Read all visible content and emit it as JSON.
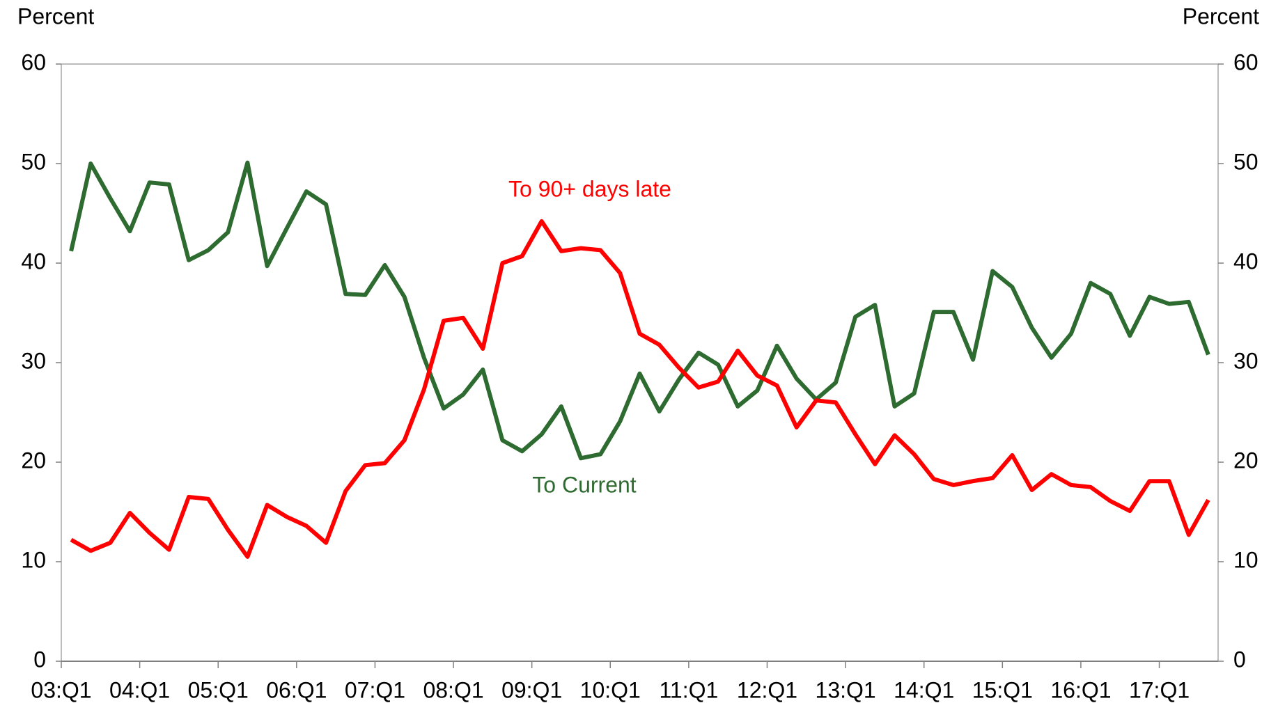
{
  "chart_data": {
    "type": "line",
    "y_label": "Percent",
    "y2_label": "Percent",
    "categories": [
      "03:Q1",
      null,
      null,
      null,
      "04:Q1",
      null,
      null,
      null,
      "05:Q1",
      null,
      null,
      null,
      "06:Q1",
      null,
      null,
      null,
      "07:Q1",
      null,
      null,
      null,
      "08:Q1",
      null,
      null,
      null,
      "09:Q1",
      null,
      null,
      null,
      "10:Q1",
      null,
      null,
      null,
      "11:Q1",
      null,
      null,
      null,
      "12:Q1",
      null,
      null,
      null,
      "13:Q1",
      null,
      null,
      null,
      "14:Q1",
      null,
      null,
      null,
      "15:Q1",
      null,
      null,
      null,
      "16:Q1",
      null,
      null,
      null,
      "17:Q1",
      null,
      null
    ],
    "series": [
      {
        "name": "To Current",
        "color": "#2e6b30",
        "values": [
          41.2,
          50,
          46.5,
          43.2,
          48.1,
          47.9,
          40.3,
          41.3,
          43.1,
          50.1,
          39.7,
          43.5,
          47.2,
          45.9,
          36.9,
          36.8,
          39.8,
          36.6,
          30.5,
          25.4,
          26.8,
          29.3,
          22.2,
          21.1,
          22.8,
          25.6,
          20.4,
          20.8,
          24.1,
          28.9,
          25.1,
          28.3,
          31.0,
          29.8,
          25.6,
          27.2,
          31.7,
          28.4,
          26.3,
          28.0,
          34.6,
          35.8,
          25.6,
          26.9,
          35.1,
          35.1,
          30.3,
          39.2,
          37.6,
          33.5,
          30.5,
          32.9,
          38.0,
          36.9,
          32.7,
          36.6,
          35.9,
          36.1,
          30.8
        ]
      },
      {
        "name": "To 90+ days late",
        "color": "#ff0000",
        "values": [
          12.2,
          11.1,
          11.9,
          14.9,
          12.9,
          11.2,
          16.5,
          16.3,
          13.2,
          10.5,
          15.7,
          14.5,
          13.6,
          11.9,
          17.1,
          19.7,
          19.9,
          22.2,
          27.3,
          34.2,
          34.5,
          31.4,
          40.0,
          40.7,
          44.2,
          41.2,
          41.5,
          41.3,
          39.0,
          32.9,
          31.8,
          29.5,
          27.5,
          28.1,
          31.2,
          28.7,
          27.7,
          23.5,
          26.2,
          26.0,
          22.8,
          19.8,
          22.7,
          20.8,
          18.3,
          17.7,
          18.1,
          18.4,
          20.7,
          17.2,
          18.8,
          17.7,
          17.5,
          16.1,
          15.1,
          18.1,
          18.1,
          12.7,
          16.2
        ]
      }
    ],
    "ylim": [
      0,
      60
    ],
    "yticks": [
      0,
      10,
      20,
      30,
      40,
      50,
      60
    ],
    "y2lim": [
      0,
      60
    ],
    "y2ticks": [
      0,
      10,
      20,
      30,
      40,
      50,
      60
    ],
    "grid": false
  }
}
